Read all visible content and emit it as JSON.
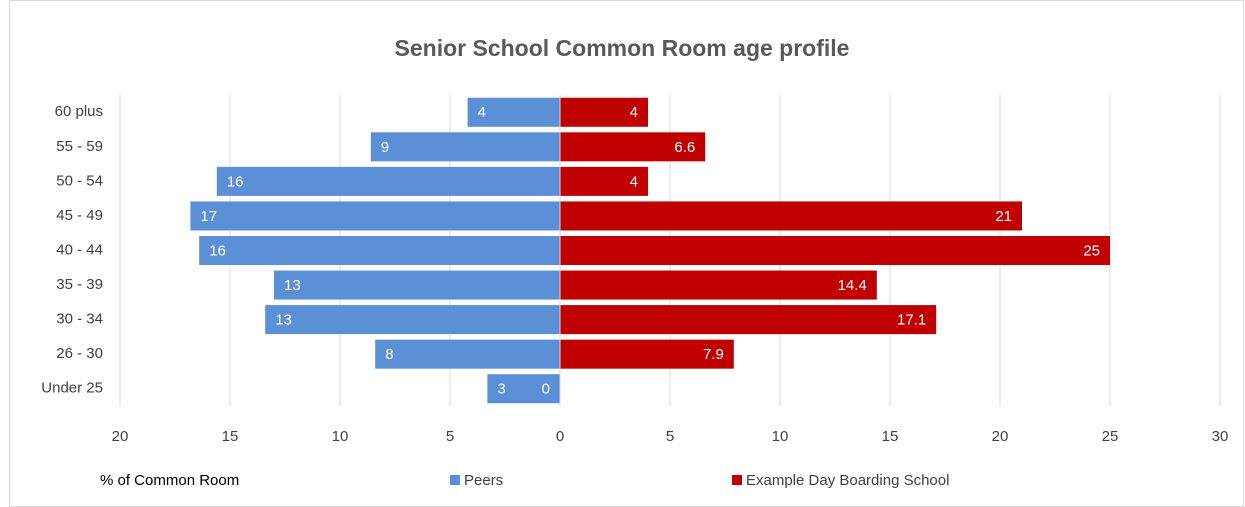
{
  "chart_data": {
    "type": "bar",
    "orientation": "horizontal",
    "title": "Senior School Common Room age profile",
    "x_label": "% of Common Room",
    "categories": [
      "60 plus",
      "55 - 59",
      "50 - 54",
      "45 - 49",
      "40 - 44",
      "35 - 39",
      "30 - 34",
      "26 - 30",
      "Under 25"
    ],
    "series": [
      {
        "name": "Peers",
        "color": "#5b8fd6",
        "values": [
          -4.2,
          -8.6,
          -15.6,
          -16.8,
          -16.4,
          -13.0,
          -13.4,
          -8.4,
          -3.3
        ],
        "value_labels": [
          "4",
          "9",
          "16",
          "17",
          "16",
          "13",
          "13",
          "8",
          "3"
        ]
      },
      {
        "name": "Example Day Boarding School",
        "color": "#c00000",
        "values": [
          4,
          6.6,
          4,
          21,
          25,
          14.4,
          17.1,
          7.9,
          0
        ]
      }
    ],
    "xlim": [
      -20,
      30
    ],
    "xticks": [
      {
        "value": -20,
        "label": "20"
      },
      {
        "value": -15,
        "label": "15"
      },
      {
        "value": -10,
        "label": "10"
      },
      {
        "value": -5,
        "label": "5"
      },
      0,
      5,
      10,
      15,
      20,
      25,
      30
    ],
    "grid": true,
    "legend": "bottom"
  }
}
